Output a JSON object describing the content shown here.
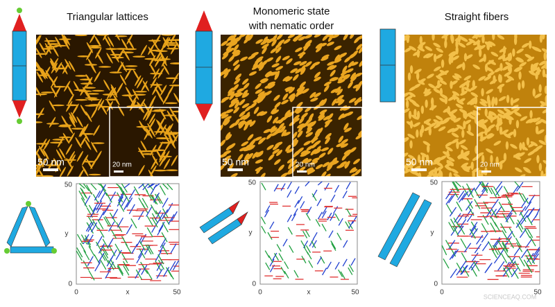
{
  "panels": [
    {
      "title": [
        "Triangular lattices"
      ],
      "scale_main": "50 nm",
      "scale_inset": "20 nm",
      "plot": {
        "x_label": "x",
        "y_label": "y",
        "x_ticks": [
          "0",
          "50"
        ],
        "y_ticks": [
          "0",
          "50"
        ]
      }
    },
    {
      "title": [
        "Monomeric state",
        "with nematic order"
      ],
      "scale_main": "50 nm",
      "scale_inset": "20 nm",
      "plot": {
        "x_label": "x",
        "y_label": "y",
        "x_ticks": [
          "0",
          "50"
        ],
        "y_ticks": [
          "0",
          "50"
        ]
      }
    },
    {
      "title": [
        "Straight fibers"
      ],
      "scale_main": "50 nm",
      "scale_inset": "20 nm",
      "plot": {
        "y_label": "y",
        "x_ticks": [
          "0",
          "50"
        ],
        "y_ticks": [
          "0",
          "50"
        ]
      }
    }
  ],
  "watermark": "SCIENCEAQ.COM"
}
